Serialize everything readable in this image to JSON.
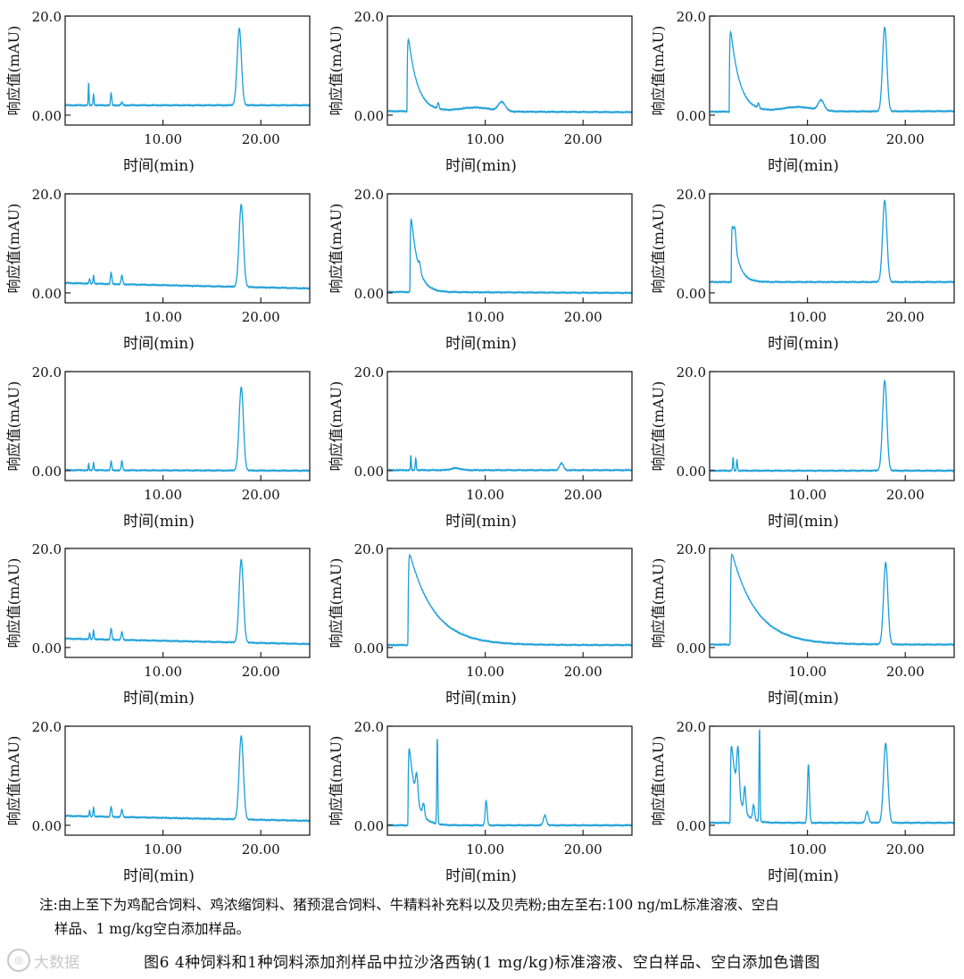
{
  "chart_data": {
    "type": "line",
    "layout": "5 rows x 3 columns",
    "xlabel": "时间(min)",
    "ylabel": "响应值(mAU)",
    "xlim": [
      0,
      25
    ],
    "ylim": [
      -2,
      20
    ],
    "x_ticks": [
      "10.00",
      "20.00"
    ],
    "y_ticks": [
      "0.00",
      "20.0"
    ],
    "line_color": "#1a9fd8",
    "panels": [
      {
        "baseline": 2.0,
        "end": 2.0,
        "decay": null,
        "peaks": [
          [
            2.4,
            4.5,
            0.04
          ],
          [
            2.9,
            2.2,
            0.05
          ],
          [
            4.7,
            2.5,
            0.06
          ],
          [
            5.8,
            0.6,
            0.08
          ],
          [
            17.8,
            15.5,
            0.22
          ]
        ]
      },
      {
        "baseline": 0.8,
        "end": 0.6,
        "decay": {
          "start": 2.0,
          "amp": 18,
          "tau": 0.9
        },
        "peaks": [
          [
            5.2,
            1.2,
            0.08
          ],
          [
            9.0,
            0.8,
            1.6
          ],
          [
            11.7,
            1.8,
            0.35
          ]
        ]
      },
      {
        "baseline": 0.7,
        "end": 0.8,
        "decay": {
          "start": 2.0,
          "amp": 20,
          "tau": 0.9
        },
        "peaks": [
          [
            5.0,
            1.0,
            0.08
          ],
          [
            9.0,
            0.9,
            1.6
          ],
          [
            11.4,
            2.0,
            0.3
          ],
          [
            17.9,
            17.0,
            0.22
          ]
        ]
      },
      {
        "baseline": 2.0,
        "end": 0.9,
        "decay": null,
        "peaks": [
          [
            2.5,
            1.0,
            0.05
          ],
          [
            2.9,
            1.6,
            0.05
          ],
          [
            4.7,
            2.4,
            0.07
          ],
          [
            5.8,
            1.8,
            0.08
          ],
          [
            18.0,
            16.6,
            0.22
          ]
        ]
      },
      {
        "baseline": 0.2,
        "end": 0.0,
        "decay": {
          "start": 2.3,
          "amp": 19,
          "tau": 0.7
        },
        "peaks": [
          [
            3.3,
            1.5,
            0.1
          ]
        ]
      },
      {
        "baseline": 2.2,
        "end": 2.2,
        "decay": {
          "start": 2.2,
          "amp": 15,
          "tau": 0.6
        },
        "peaks": [
          [
            2.6,
            3.0,
            0.1
          ],
          [
            17.9,
            16.5,
            0.22
          ]
        ]
      },
      {
        "baseline": 0.1,
        "end": 0.0,
        "decay": null,
        "peaks": [
          [
            2.4,
            1.3,
            0.04
          ],
          [
            2.9,
            1.5,
            0.05
          ],
          [
            4.7,
            1.9,
            0.06
          ],
          [
            5.8,
            1.9,
            0.07
          ],
          [
            18.0,
            16.8,
            0.22
          ]
        ]
      },
      {
        "baseline": 0.1,
        "end": 0.1,
        "decay": null,
        "peaks": [
          [
            2.4,
            3.0,
            0.04
          ],
          [
            2.9,
            2.4,
            0.05
          ],
          [
            7.0,
            0.4,
            0.5
          ],
          [
            17.8,
            1.4,
            0.2
          ]
        ]
      },
      {
        "baseline": 0.0,
        "end": 0.0,
        "decay": null,
        "peaks": [
          [
            2.4,
            2.6,
            0.05
          ],
          [
            2.8,
            2.2,
            0.05
          ],
          [
            17.9,
            18.2,
            0.22
          ]
        ]
      },
      {
        "baseline": 1.8,
        "end": 0.7,
        "decay": null,
        "peaks": [
          [
            2.5,
            1.4,
            0.04
          ],
          [
            2.9,
            1.8,
            0.05
          ],
          [
            4.7,
            2.3,
            0.07
          ],
          [
            5.8,
            1.6,
            0.08
          ],
          [
            18.0,
            16.7,
            0.22
          ]
        ]
      },
      {
        "baseline": 0.5,
        "end": 0.5,
        "decay": {
          "start": 2.1,
          "amp": 20,
          "tau": 2.5
        },
        "peaks": []
      },
      {
        "baseline": 0.6,
        "end": 0.6,
        "decay": {
          "start": 2.1,
          "amp": 20,
          "tau": 2.5
        },
        "peaks": [
          [
            18.0,
            16.5,
            0.22
          ]
        ]
      },
      {
        "baseline": 1.9,
        "end": 0.9,
        "decay": null,
        "peaks": [
          [
            2.5,
            1.4,
            0.04
          ],
          [
            2.9,
            1.8,
            0.05
          ],
          [
            4.7,
            2.1,
            0.07
          ],
          [
            5.8,
            1.5,
            0.08
          ],
          [
            18.0,
            16.8,
            0.22
          ]
        ]
      },
      {
        "baseline": 0.0,
        "end": 0.0,
        "decay": {
          "start": 2.1,
          "amp": 20,
          "tau": 0.7
        },
        "peaks": [
          [
            3.0,
            5.0,
            0.12
          ],
          [
            3.7,
            2.5,
            0.1
          ],
          [
            5.1,
            17.5,
            0.05
          ],
          [
            10.1,
            5.0,
            0.1
          ],
          [
            16.1,
            2.0,
            0.15
          ]
        ]
      },
      {
        "baseline": 0.5,
        "end": 0.5,
        "decay": {
          "start": 2.1,
          "amp": 20,
          "tau": 0.7
        },
        "peaks": [
          [
            2.9,
            9.0,
            0.12
          ],
          [
            3.6,
            5.0,
            0.1
          ],
          [
            4.5,
            3.0,
            0.1
          ],
          [
            5.1,
            19.0,
            0.05
          ],
          [
            10.1,
            11.8,
            0.1
          ],
          [
            16.1,
            2.2,
            0.15
          ],
          [
            18.0,
            16.0,
            0.22
          ]
        ]
      }
    ]
  },
  "note": {
    "line1": "注:由上至下为鸡配合饲料、鸡浓缩饲料、猪预混合饲料、牛精料补充料以及贝壳粉;由左至右:100 ng/mL标准溶液、空白",
    "line2": "样品、1 mg/kg空白添加样品。"
  },
  "caption": "图6 4种饲料和1种饲料添加剂样品中拉沙洛西钠(1 mg/kg)标准溶液、空白样品、空白添加色谱图",
  "watermark": "大数据"
}
